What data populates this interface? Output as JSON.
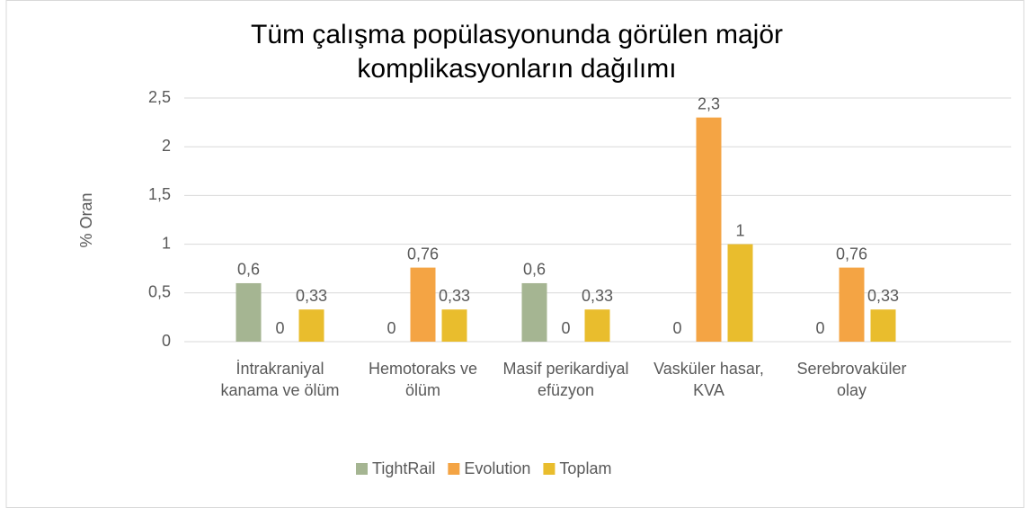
{
  "chart_data": {
    "type": "bar",
    "title": "Tüm çalışma popülasyonunda görülen majör komplikasyonların dağılımı",
    "y_label": "% Oran",
    "categories": [
      "İntrakraniyal kanama ve ölüm",
      "Hemotoraks ve ölüm",
      "Masif perikardiyal efüzyon",
      "Vasküler hasar, KVA",
      "Serebrovaküler olay"
    ],
    "series": [
      {
        "name": "TightRail",
        "color": "#a5b592",
        "values": [
          0.6,
          0,
          0.6,
          0,
          0
        ],
        "value_labels": [
          "0,6",
          "0",
          "0,6",
          "0",
          "0"
        ]
      },
      {
        "name": "Evolution",
        "color": "#f4a444",
        "values": [
          0,
          0.76,
          0,
          2.3,
          0.76
        ],
        "value_labels": [
          "0",
          "0,76",
          "0",
          "2,3",
          "0,76"
        ]
      },
      {
        "name": "Toplam",
        "color": "#e9bd2d",
        "values": [
          0.33,
          0.33,
          0.33,
          1,
          0.33
        ],
        "value_labels": [
          "0,33",
          "0,33",
          "0,33",
          "1",
          "0,33"
        ]
      }
    ],
    "ylim": [
      0,
      2.5
    ],
    "yticks": [
      0,
      {
        "value": 0.5,
        "label": "0,5"
      },
      1,
      {
        "value": 1.5,
        "label": "1,5"
      },
      2,
      {
        "value": 2.5,
        "label": "2,5"
      }
    ],
    "grid": true,
    "legend": "bottom"
  }
}
